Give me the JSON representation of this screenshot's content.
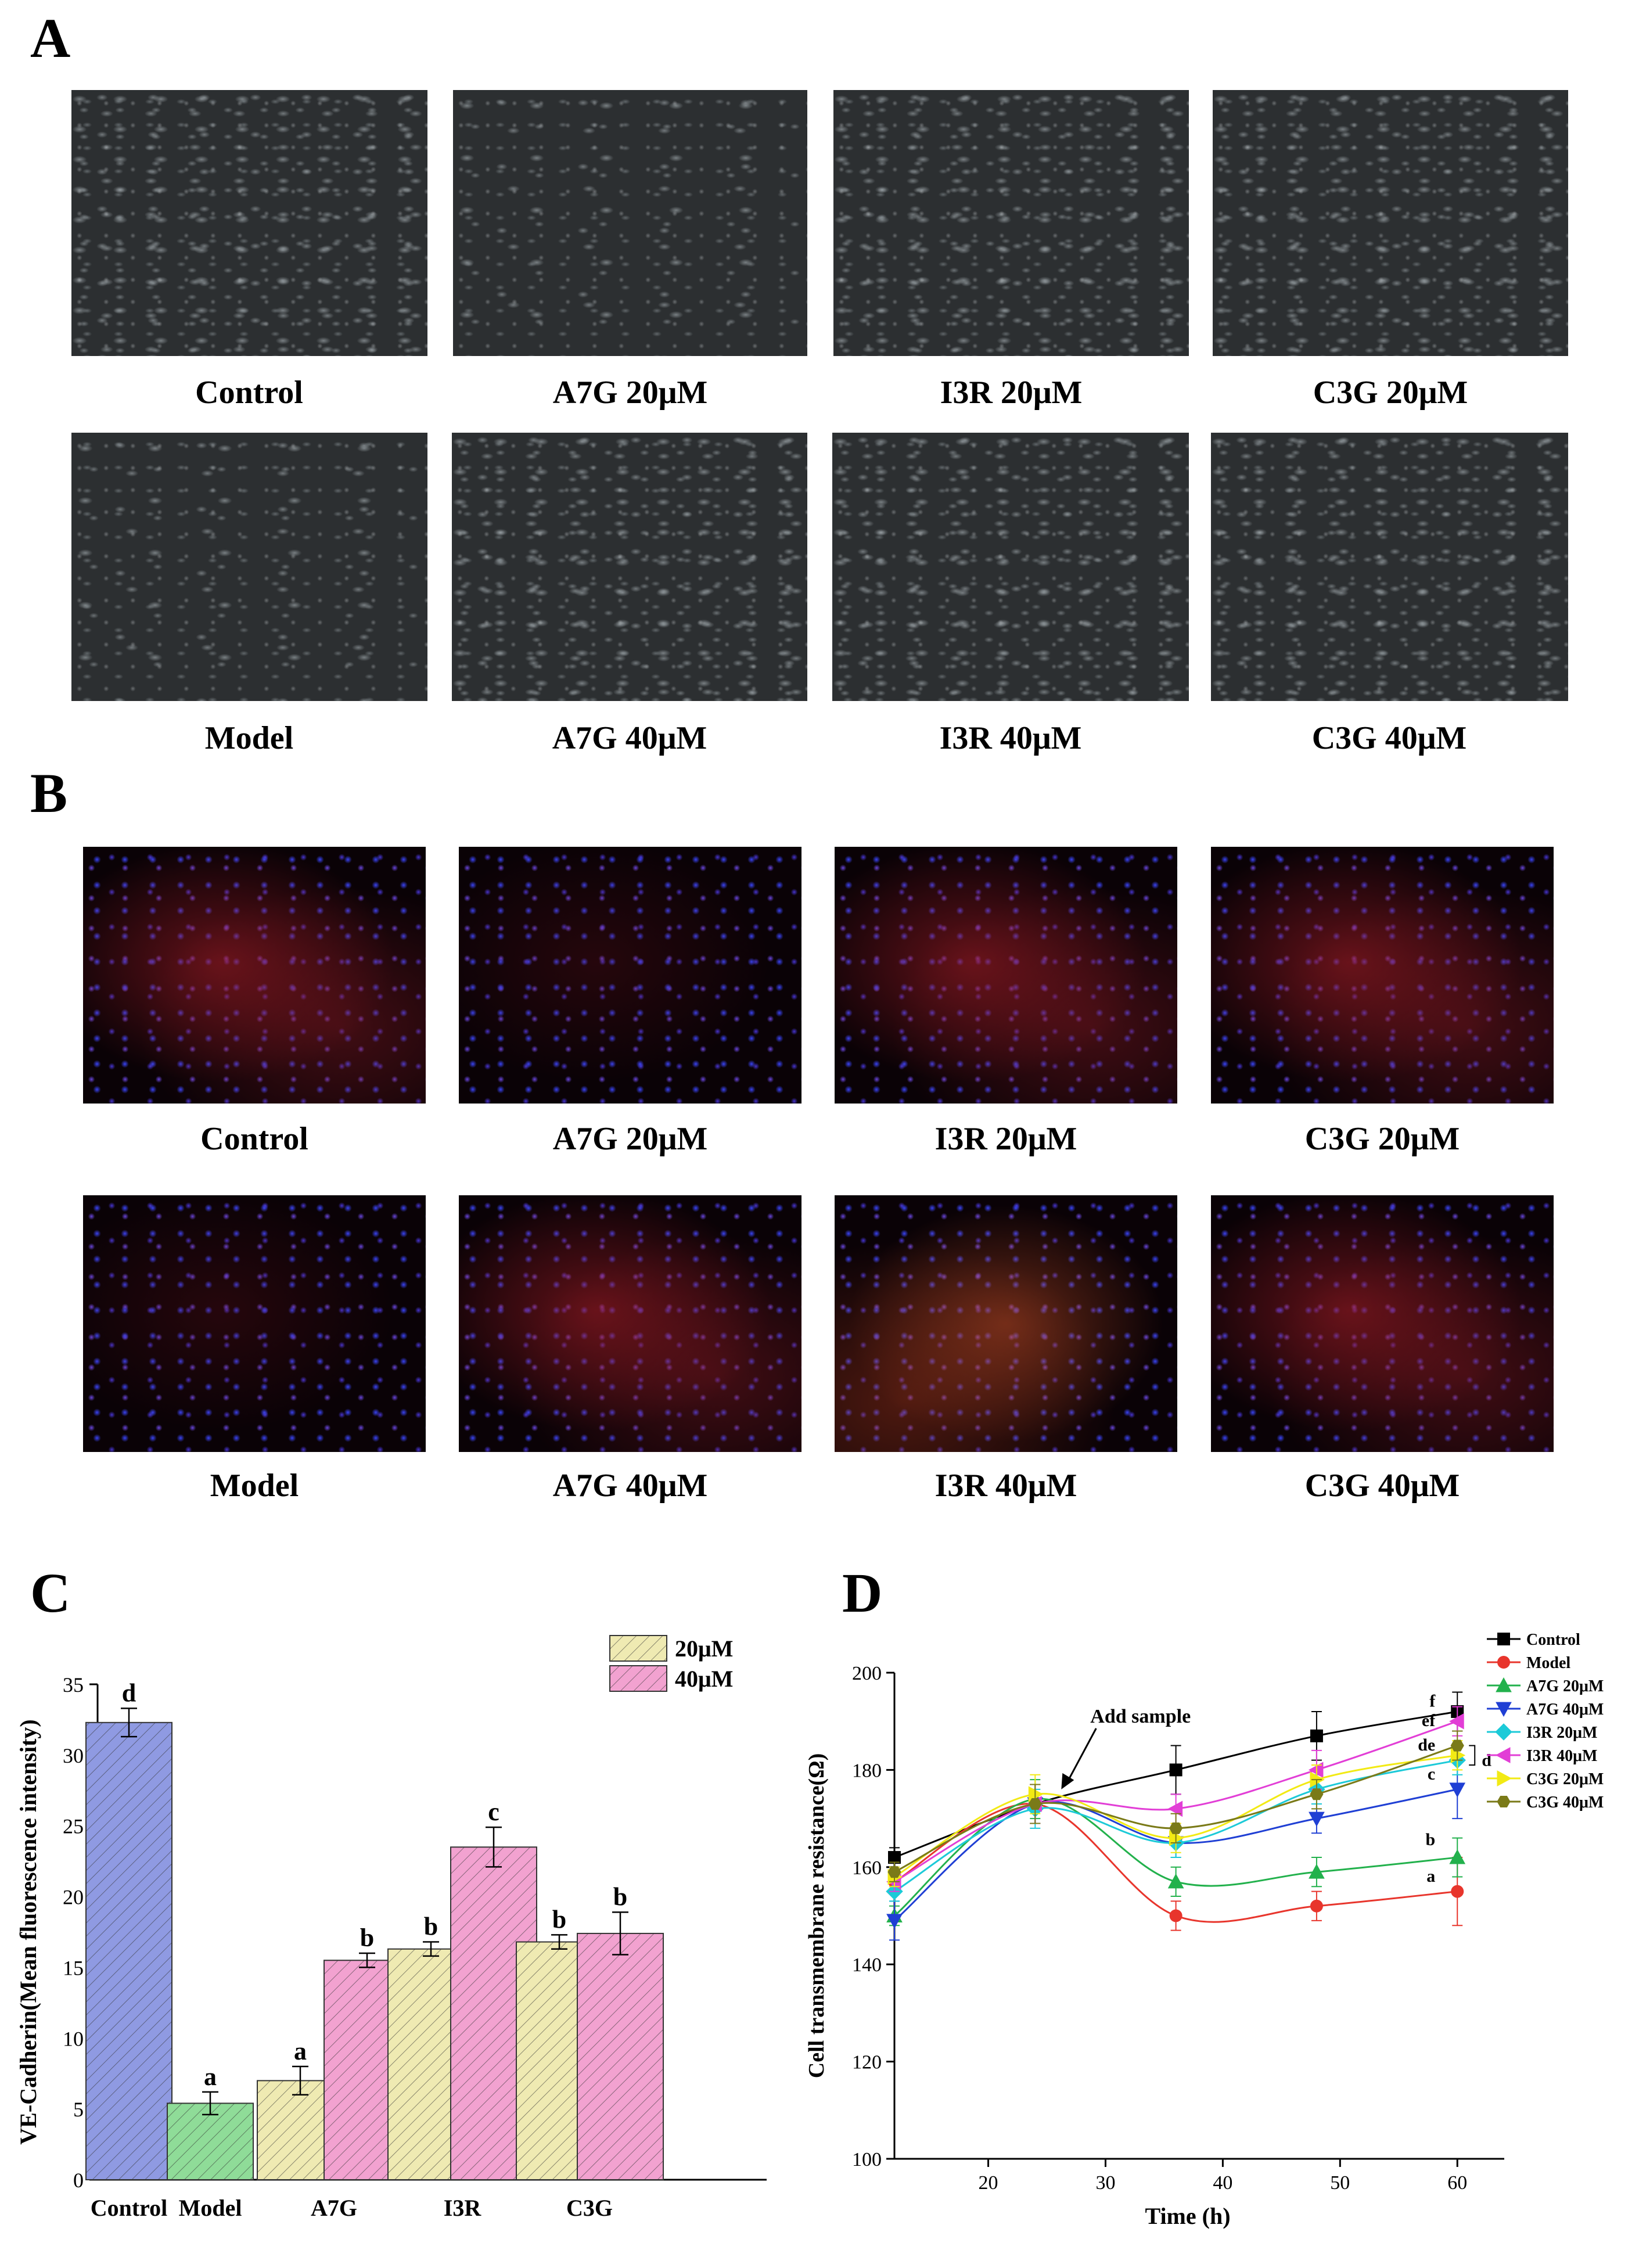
{
  "panels": {
    "a": {
      "label": "A",
      "captions_top": [
        "Control",
        "A7G 20μM",
        "I3R 20μM",
        "C3G 20μM"
      ],
      "captions_bottom": [
        "Model",
        "A7G 40μM",
        "I3R 40μM",
        "C3G 40μM"
      ]
    },
    "b": {
      "label": "B",
      "captions_top": [
        "Control",
        "A7G 20μM",
        "I3R 20μM",
        "C3G 20μM"
      ],
      "captions_bottom": [
        "Model",
        "A7G 40μM",
        "I3R 40μM",
        "C3G 40μM"
      ]
    },
    "c": {
      "label": "C"
    },
    "d": {
      "label": "D"
    }
  },
  "chart_data": [
    {
      "type": "bar",
      "title": "",
      "ylabel": "VE-Cadherin(Mean fluorescence intensity)",
      "xlabel": "",
      "ylim": [
        0,
        35
      ],
      "yticks": [
        "0",
        "5",
        "10",
        "15",
        "20",
        "25",
        "30",
        "35"
      ],
      "group_labels": [
        "Control",
        "Model",
        "A7G",
        "I3R",
        "C3G"
      ],
      "legend": [
        "20μM",
        "40μM"
      ],
      "legend_position": "top-right",
      "colors": {
        "control": "#8f9ae2",
        "model": "#8fdc98",
        "c20": "#efeab2",
        "c40": "#f2a2d0"
      },
      "bars": [
        {
          "group": "Control",
          "kind": "control",
          "value": 32.3,
          "err": 1.0,
          "letter": "d"
        },
        {
          "group": "Model",
          "kind": "model",
          "value": 5.4,
          "err": 0.8,
          "letter": "a"
        },
        {
          "group": "A7G",
          "kind": "c20",
          "value": 7.0,
          "err": 1.0,
          "letter": "a"
        },
        {
          "group": "A7G",
          "kind": "c40",
          "value": 15.5,
          "err": 0.5,
          "letter": "b"
        },
        {
          "group": "I3R",
          "kind": "c20",
          "value": 16.3,
          "err": 0.5,
          "letter": "b"
        },
        {
          "group": "I3R",
          "kind": "c40",
          "value": 23.5,
          "err": 1.4,
          "letter": "c"
        },
        {
          "group": "C3G",
          "kind": "c20",
          "value": 16.8,
          "err": 0.5,
          "letter": "b"
        },
        {
          "group": "C3G",
          "kind": "c40",
          "value": 17.4,
          "err": 1.5,
          "letter": "b"
        }
      ]
    },
    {
      "type": "line",
      "title": "",
      "xlabel": "Time (h)",
      "ylabel": "Cell transmembrane resistance(Ω)",
      "xlim": [
        12,
        64
      ],
      "ylim": [
        100,
        200
      ],
      "xticks": [
        "20",
        "30",
        "40",
        "50",
        "60"
      ],
      "yticks": [
        "100",
        "120",
        "140",
        "160",
        "180",
        "200"
      ],
      "annotation": "Add sample",
      "legend_position": "top-right",
      "x": [
        12,
        24,
        36,
        48,
        60
      ],
      "series": [
        {
          "name": "Control",
          "color": "#000000",
          "marker": "square",
          "values": [
            162,
            173,
            180,
            187,
            192
          ],
          "err": [
            2,
            4,
            5,
            5,
            4
          ]
        },
        {
          "name": "Model",
          "color": "#e8352c",
          "marker": "circle",
          "values": [
            157,
            173,
            150,
            152,
            155
          ],
          "err": [
            2,
            4,
            3,
            3,
            7
          ]
        },
        {
          "name": "A7G 20μM",
          "color": "#22b14c",
          "marker": "triangle-up",
          "values": [
            150,
            174,
            157,
            159,
            162
          ],
          "err": [
            2,
            4,
            3,
            3,
            4
          ]
        },
        {
          "name": "A7G 40μM",
          "color": "#1f3fd4",
          "marker": "triangle-down",
          "values": [
            149,
            173,
            165,
            170,
            176
          ],
          "err": [
            4,
            4,
            3,
            3,
            6
          ]
        },
        {
          "name": "I3R 20μM",
          "color": "#1ccad8",
          "marker": "diamond",
          "values": [
            155,
            172,
            165,
            176,
            182
          ],
          "err": [
            2,
            4,
            3,
            3,
            3
          ]
        },
        {
          "name": "I3R 40μM",
          "color": "#e23ed6",
          "marker": "triangle-left",
          "values": [
            157,
            173,
            172,
            180,
            190
          ],
          "err": [
            2,
            4,
            3,
            4,
            3
          ]
        },
        {
          "name": "C3G 20μM",
          "color": "#f2ea14",
          "marker": "triangle-right",
          "values": [
            158,
            175,
            166,
            178,
            183
          ],
          "err": [
            2,
            4,
            3,
            3,
            3
          ]
        },
        {
          "name": "C3G 40μM",
          "color": "#7a7a18",
          "marker": "hexagon",
          "values": [
            159,
            173,
            168,
            175,
            185
          ],
          "err": [
            2,
            4,
            3,
            3,
            3
          ]
        }
      ],
      "letters": [
        {
          "text": "f",
          "series": "Control"
        },
        {
          "text": "ef",
          "series": "I3R 40μM"
        },
        {
          "text": "de",
          "series": "C3G 40μM"
        },
        {
          "text": "d",
          "series": "bracket"
        },
        {
          "text": "c",
          "series": "A7G 40μM"
        },
        {
          "text": "b",
          "series": "A7G 20μM"
        },
        {
          "text": "a",
          "series": "Model"
        }
      ]
    }
  ]
}
